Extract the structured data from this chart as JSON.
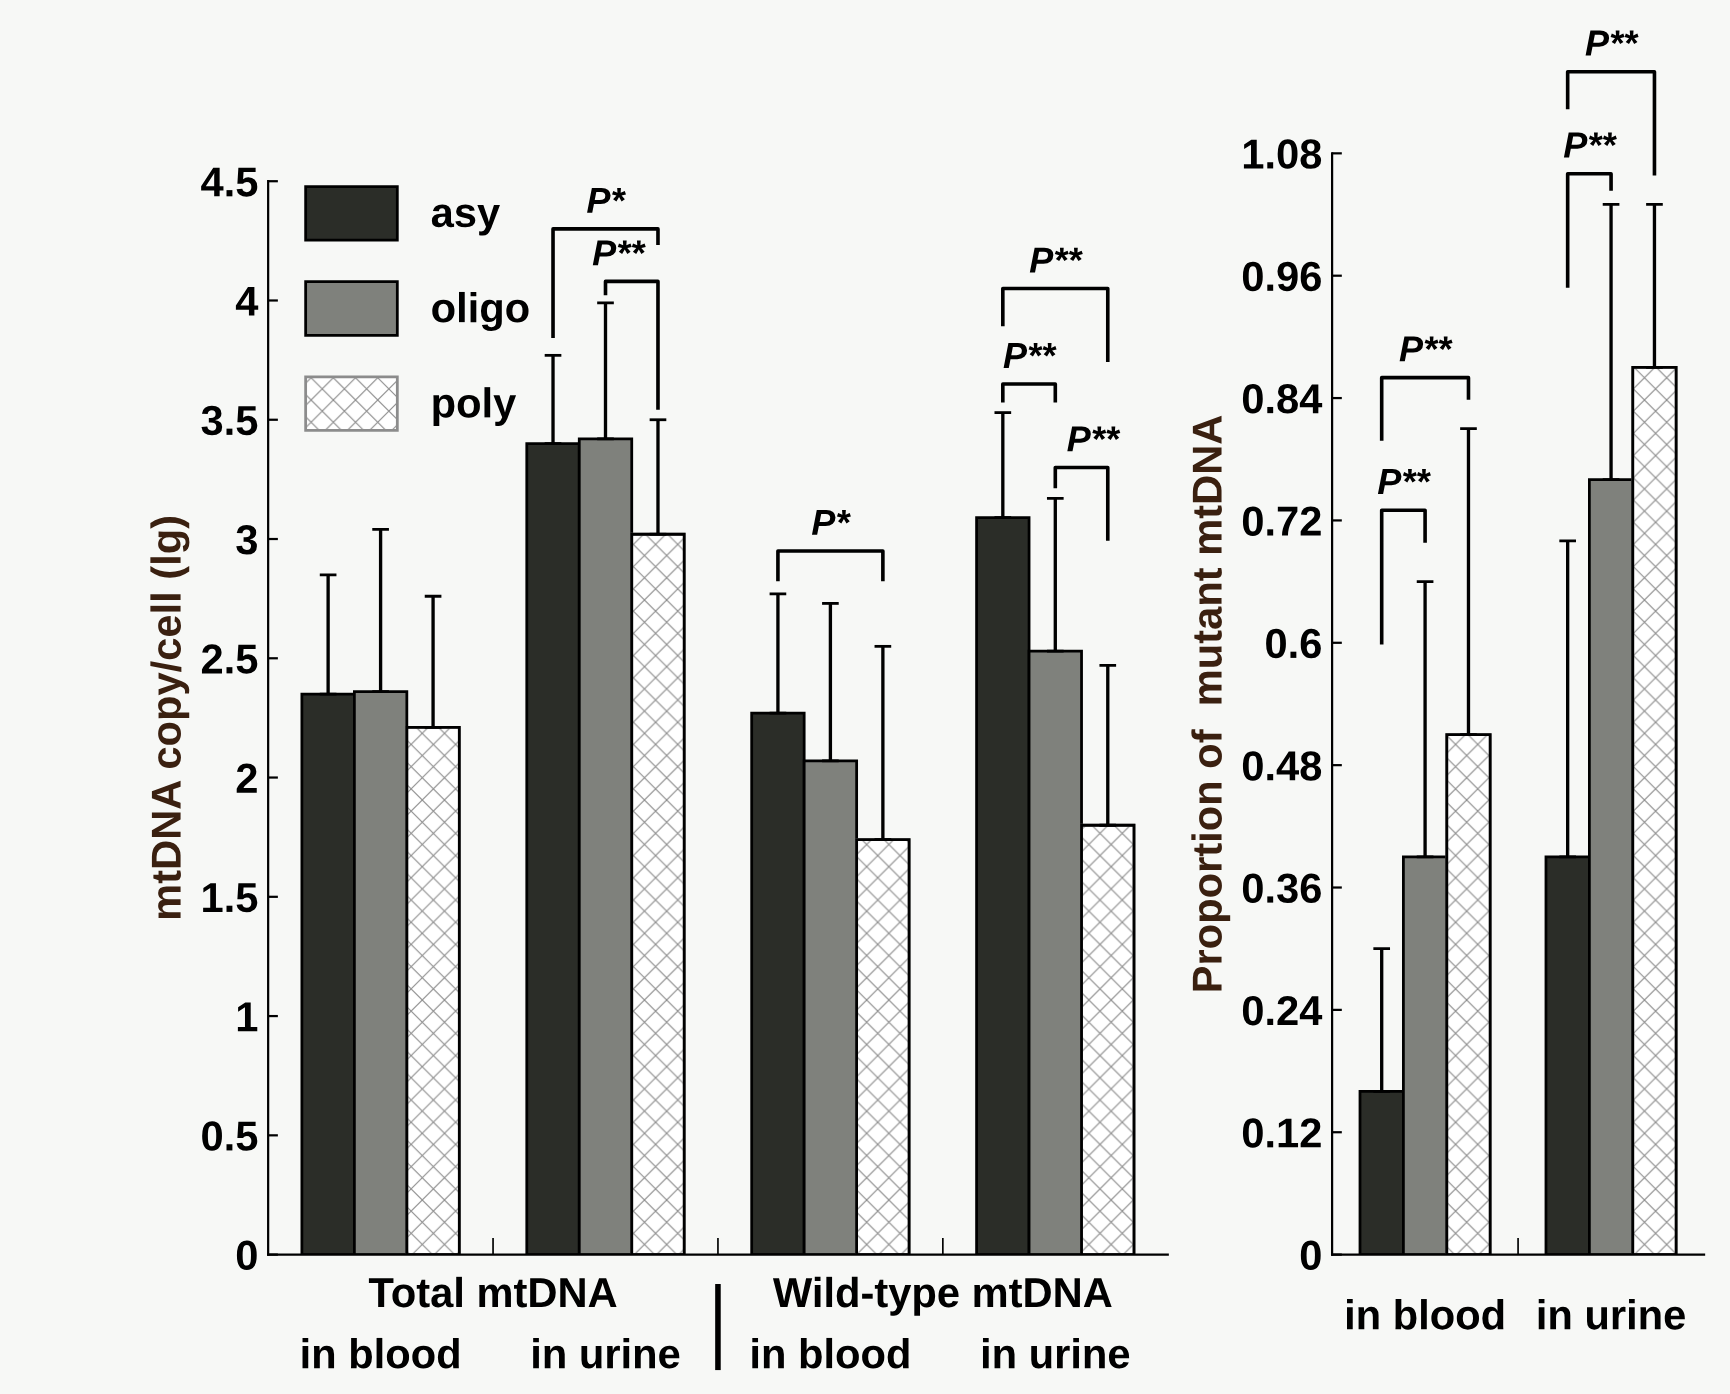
{
  "chart_data": [
    {
      "type": "bar",
      "ylabel": "mtDNA copy/cell (lg)",
      "categories": [
        "in blood",
        "in urine",
        "in blood",
        "in urine"
      ],
      "ylim": [
        0,
        4.5
      ],
      "yticks": [
        0,
        0.5,
        1,
        1.5,
        2,
        2.5,
        3,
        3.5,
        4,
        4.5
      ],
      "legend": "top left",
      "grid": false,
      "series": [
        {
          "name": "asy",
          "color": "#2b2d28",
          "values": [
            2.35,
            3.4,
            2.27,
            3.09
          ],
          "errors": [
            [
              2.35,
              2.85
            ],
            [
              3.4,
              3.77
            ],
            [
              2.27,
              2.77
            ],
            [
              3.09,
              3.53
            ]
          ]
        },
        {
          "name": "oligo",
          "color": "#7f817c",
          "values": [
            2.36,
            3.42,
            2.07,
            2.53
          ],
          "errors": [
            [
              2.36,
              3.04
            ],
            [
              3.42,
              3.99
            ],
            [
              2.07,
              2.73
            ],
            [
              2.53,
              3.17
            ]
          ]
        },
        {
          "name": "poly",
          "color": "#8c8c8c",
          "values": [
            2.21,
            3.02,
            1.74,
            1.8
          ],
          "errors": [
            [
              2.21,
              2.76
            ],
            [
              3.02,
              3.5
            ],
            [
              1.74,
              2.55
            ],
            [
              1.8,
              2.47
            ]
          ]
        }
      ],
      "annotations": [
        "Total mtDNA",
        "Wild-type mtDNA",
        "P*",
        "P**",
        "P*",
        "P**",
        "P**",
        "P**"
      ]
    },
    {
      "type": "bar",
      "ylabel": "Proportion of  mutant mtDNA",
      "categories": [
        "in blood",
        "in urine"
      ],
      "ylim": [
        0,
        1.08
      ],
      "yticks": [
        0,
        0.12,
        0.24,
        0.36,
        0.48,
        0.6,
        0.72,
        0.84,
        0.96,
        1.08
      ],
      "grid": false,
      "series": [
        {
          "color": "#2b2d28",
          "values": [
            0.16,
            0.39
          ],
          "errors": [
            [
              0.16,
              0.3
            ],
            [
              0.39,
              0.7
            ]
          ]
        },
        {
          "color": "#7f817c",
          "values": [
            0.39,
            0.76
          ],
          "errors": [
            [
              0.39,
              0.66
            ],
            [
              0.76,
              1.03
            ]
          ]
        },
        {
          "color": "#8c8c8c",
          "values": [
            0.51,
            0.87
          ],
          "errors": [
            [
              0.51,
              0.81
            ],
            [
              0.87,
              1.03
            ]
          ]
        }
      ],
      "annotations": [
        "P**",
        "P**",
        "P**",
        "P**"
      ]
    }
  ]
}
